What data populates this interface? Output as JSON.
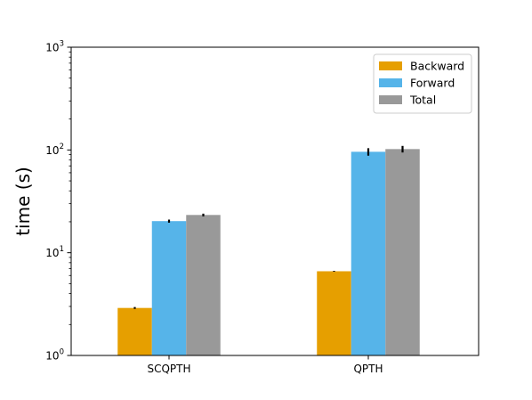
{
  "chart_data": {
    "type": "bar",
    "title": "",
    "xlabel": "",
    "ylabel": "time (s)",
    "yscale": "log",
    "ylim": [
      1,
      1000
    ],
    "yticks": [
      {
        "value": 1,
        "base": "10",
        "exp": "0"
      },
      {
        "value": 10,
        "base": "10",
        "exp": "1"
      },
      {
        "value": 100,
        "base": "10",
        "exp": "2"
      },
      {
        "value": 1000,
        "base": "10",
        "exp": "3"
      }
    ],
    "categories": [
      "SCQPTH",
      "QPTH"
    ],
    "series": [
      {
        "name": "Backward",
        "color": "#E69F00",
        "values": [
          2.9,
          6.6
        ],
        "errors": [
          0.06,
          0.06
        ]
      },
      {
        "name": "Forward",
        "color": "#56B4E9",
        "values": [
          20.3,
          96.0
        ],
        "errors": [
          0.7,
          8.0
        ]
      },
      {
        "name": "Total",
        "color": "#999999",
        "values": [
          23.3,
          102.0
        ],
        "errors": [
          0.7,
          7.5
        ]
      }
    ],
    "legend": {
      "position": "top-right"
    },
    "grid": false
  }
}
